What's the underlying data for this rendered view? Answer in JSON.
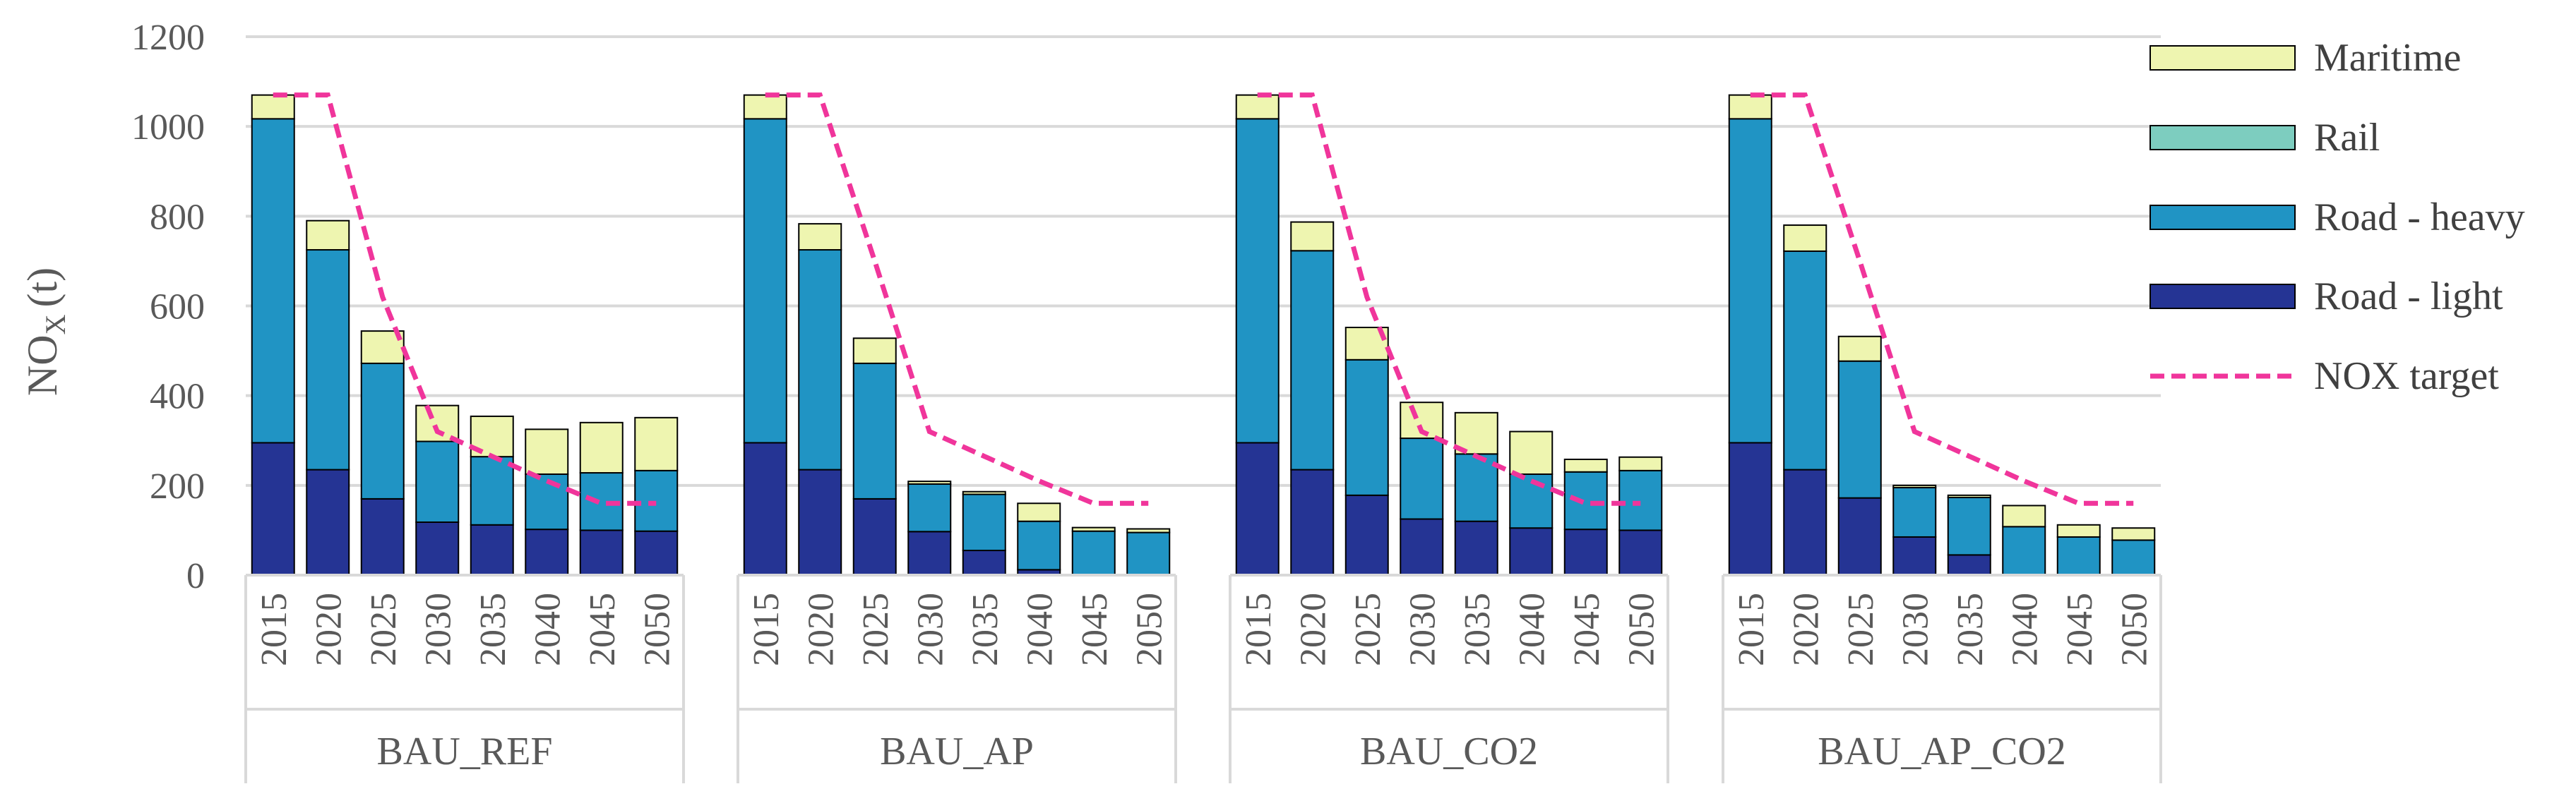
{
  "chart_data": {
    "type": "bar",
    "stacked": true,
    "ylabel_main": "NO",
    "ylabel_sub": "X",
    "ylabel_unit": "(t)",
    "ylim": [
      0,
      1200
    ],
    "yticks": [
      0,
      200,
      400,
      600,
      800,
      1000,
      1200
    ],
    "grid": true,
    "legend_position": "right",
    "years": [
      "2015",
      "2020",
      "2025",
      "2030",
      "2035",
      "2040",
      "2045",
      "2050"
    ],
    "groups": [
      {
        "name": "BAU_REF",
        "series": {
          "Road - light": [
            295,
            235,
            170,
            118,
            112,
            102,
            100,
            98
          ],
          "Road - heavy": [
            722,
            490,
            302,
            180,
            152,
            123,
            128,
            135
          ],
          "Rail": [
            0,
            0,
            0,
            0,
            0,
            0,
            0,
            0
          ],
          "Maritime": [
            53,
            65,
            72,
            80,
            90,
            100,
            112,
            118
          ]
        },
        "target": [
          1070,
          1070,
          620,
          320,
          265,
          210,
          160,
          160
        ]
      },
      {
        "name": "BAU_AP",
        "series": {
          "Road - light": [
            295,
            235,
            170,
            97,
            55,
            12,
            0,
            0
          ],
          "Road - heavy": [
            722,
            490,
            302,
            106,
            125,
            108,
            98,
            95
          ],
          "Rail": [
            0,
            0,
            0,
            0,
            0,
            0,
            0,
            0
          ],
          "Maritime": [
            53,
            58,
            56,
            6,
            6,
            40,
            8,
            8
          ]
        },
        "target": [
          1070,
          1070,
          700,
          320,
          265,
          210,
          160,
          160
        ]
      },
      {
        "name": "BAU_CO2",
        "series": {
          "Road - light": [
            295,
            235,
            178,
            125,
            120,
            105,
            102,
            100
          ],
          "Road - heavy": [
            722,
            488,
            302,
            180,
            150,
            120,
            128,
            133
          ],
          "Rail": [
            0,
            0,
            0,
            0,
            0,
            0,
            0,
            0
          ],
          "Maritime": [
            53,
            64,
            72,
            80,
            92,
            95,
            28,
            30
          ]
        },
        "target": [
          1070,
          1070,
          620,
          320,
          265,
          210,
          160,
          160
        ]
      },
      {
        "name": "BAU_AP_CO2",
        "series": {
          "Road - light": [
            295,
            235,
            172,
            85,
            45,
            0,
            0,
            0
          ],
          "Road - heavy": [
            722,
            487,
            305,
            110,
            128,
            108,
            85,
            78
          ],
          "Rail": [
            0,
            0,
            0,
            0,
            0,
            0,
            0,
            0
          ],
          "Maritime": [
            53,
            58,
            55,
            5,
            5,
            47,
            27,
            27
          ]
        },
        "target": [
          1070,
          1070,
          700,
          320,
          265,
          210,
          160,
          160
        ]
      }
    ],
    "legend": [
      {
        "label": "Maritime",
        "kind": "box",
        "color": "#eef5b0"
      },
      {
        "label": "Rail",
        "kind": "box",
        "color": "#7dcdbf"
      },
      {
        "label": "Road - heavy",
        "kind": "box",
        "color": "#2094c4"
      },
      {
        "label": "Road - light",
        "kind": "box",
        "color": "#253494"
      },
      {
        "label": "NOX target",
        "kind": "line",
        "color": "#f0359b"
      }
    ],
    "colors": {
      "Road - light": "#253494",
      "Road - heavy": "#2094c4",
      "Rail": "#7dcdbf",
      "Maritime": "#eef5b0",
      "target": "#f0359b"
    }
  }
}
